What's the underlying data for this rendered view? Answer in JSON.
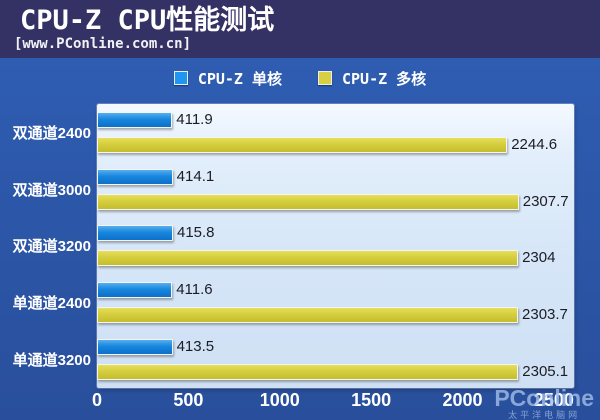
{
  "header": {
    "title": "CPU-Z CPU性能测试",
    "subtitle": "[www.PConline.com.cn]"
  },
  "legend": {
    "items": [
      {
        "label": "CPU-Z 单核",
        "color": "#2196f0"
      },
      {
        "label": "CPU-Z 多核",
        "color": "#d8d040"
      }
    ]
  },
  "chart_data": {
    "type": "bar",
    "orientation": "horizontal",
    "title": "CPU-Z CPU性能测试",
    "categories": [
      "双通道2400",
      "双通道3000",
      "双通道3200",
      "单通道2400",
      "单通道3200"
    ],
    "series": [
      {
        "name": "CPU-Z 单核",
        "color": "#1787dd",
        "values": [
          411.9,
          414.1,
          415.8,
          411.6,
          413.5
        ]
      },
      {
        "name": "CPU-Z 多核",
        "color": "#d3cc3c",
        "values": [
          2244.6,
          2307.7,
          2304,
          2303.7,
          2305.1
        ]
      }
    ],
    "xlim": [
      0,
      2610
    ],
    "x_ticks": [
      0,
      500,
      1000,
      1500,
      2000,
      2500
    ],
    "grid": false,
    "legend_position": "top",
    "value_labels": true
  },
  "watermark": {
    "brand": "PConline",
    "sub": "太平洋电脑网"
  },
  "colors": {
    "header_bg": "#343264",
    "frame_bg": "#2d56a7",
    "plot_bg": "#d9e8f8",
    "bar_single": "#1787dd",
    "bar_multi": "#d3cc3c",
    "value_text": "#1c1c24",
    "label_text": "#ffffff"
  }
}
